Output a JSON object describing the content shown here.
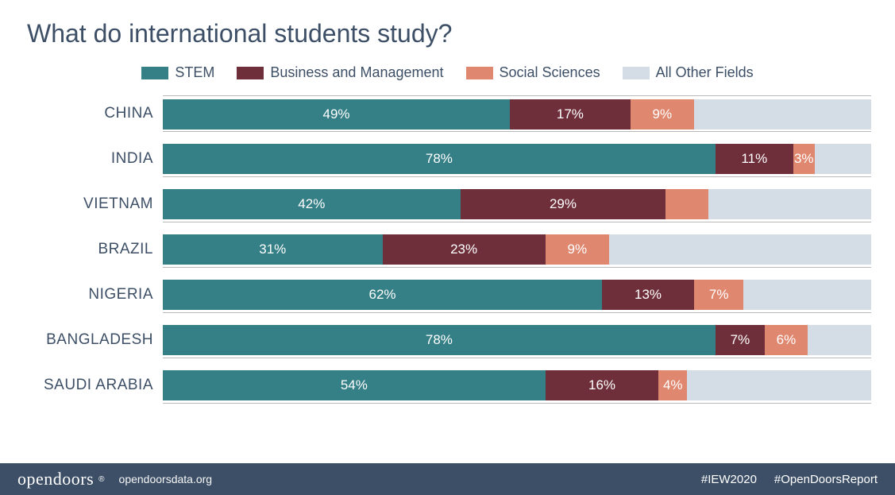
{
  "title": "What do international students study?",
  "chart": {
    "type": "stacked_horizontal_bar",
    "value_suffix": "%",
    "bar_total": 100,
    "colors": {
      "stem": "#357f86",
      "business": "#6e2f3a",
      "social": "#e0876f",
      "other": "#d4dde6",
      "text_on_bar": "#ffffff",
      "title_text": "#3d4f66",
      "label_text": "#3d4f66",
      "gridline": "#b9b9b9",
      "background": "#ffffff",
      "footer_bg": "#3d4f66",
      "footer_text": "#ffffff"
    },
    "typography": {
      "title_fontsize": 32,
      "legend_fontsize": 18,
      "row_label_fontsize": 19,
      "bar_value_fontsize": 17,
      "footer_fontsize": 15,
      "brand_fontsize": 22
    },
    "min_label_pct": 3,
    "series": [
      {
        "key": "stem",
        "label": "STEM"
      },
      {
        "key": "business",
        "label": "Business and Management"
      },
      {
        "key": "social",
        "label": "Social Sciences"
      },
      {
        "key": "other",
        "label": "All Other Fields"
      }
    ],
    "rows": [
      {
        "label": "CHINA",
        "stem": 49,
        "business": 17,
        "social": 9,
        "other": 25,
        "show": {
          "stem": true,
          "business": true,
          "social": true,
          "other": false
        }
      },
      {
        "label": "INDIA",
        "stem": 78,
        "business": 11,
        "social": 3,
        "other": 8,
        "show": {
          "stem": true,
          "business": true,
          "social": true,
          "other": false
        }
      },
      {
        "label": "VIETNAM",
        "stem": 42,
        "business": 29,
        "social": 6,
        "other": 23,
        "show": {
          "stem": true,
          "business": true,
          "social": false,
          "other": false
        }
      },
      {
        "label": "BRAZIL",
        "stem": 31,
        "business": 23,
        "social": 9,
        "other": 37,
        "show": {
          "stem": true,
          "business": true,
          "social": true,
          "other": false
        }
      },
      {
        "label": "NIGERIA",
        "stem": 62,
        "business": 13,
        "social": 7,
        "other": 18,
        "show": {
          "stem": true,
          "business": true,
          "social": true,
          "other": false
        }
      },
      {
        "label": "BANGLADESH",
        "stem": 78,
        "business": 7,
        "social": 6,
        "other": 9,
        "show": {
          "stem": true,
          "business": true,
          "social": true,
          "other": false
        }
      },
      {
        "label": "SAUDI ARABIA",
        "stem": 54,
        "business": 16,
        "social": 4,
        "other": 26,
        "show": {
          "stem": true,
          "business": true,
          "social": true,
          "other": false
        }
      }
    ]
  },
  "footer": {
    "brand": "opendoors",
    "brand_symbol": "®",
    "url": "opendoorsdata.org",
    "hashtags": [
      "#IEW2020",
      "#OpenDoorsReport"
    ]
  }
}
